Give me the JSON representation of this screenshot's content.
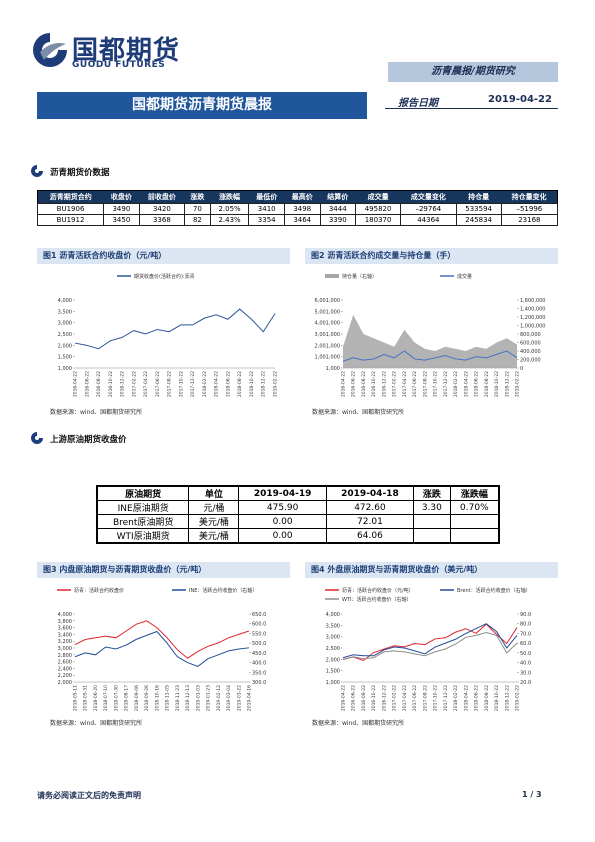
{
  "header": {
    "logo_cn": "国都期货",
    "logo_en": "GUODU FUTURES",
    "category": "沥青晨报/期货研究",
    "banner": "国都期货沥青期货晨报",
    "date_label": "报告日期",
    "date": "2019-04-22"
  },
  "sections": [
    {
      "title": "沥青期货价数据",
      "table": {
        "columns": [
          "沥青期货合约",
          "收盘价",
          "前收盘价",
          "涨跌",
          "涨跌幅",
          "最低价",
          "最高价",
          "结算价",
          "成交量",
          "成交量变化",
          "持仓量",
          "持仓量变化"
        ],
        "rows": [
          [
            "BU1906",
            "3490",
            "3420",
            "70",
            "2.05%",
            "3410",
            "3498",
            "3444",
            "495820",
            "–29764",
            "533594",
            "–51996"
          ],
          [
            "BU1912",
            "3450",
            "3368",
            "82",
            "2.43%",
            "3354",
            "3464",
            "3390",
            "180370",
            "44364",
            "245834",
            "23168"
          ]
        ]
      }
    },
    {
      "title": "上游原油期货收盘价",
      "table": {
        "columns": [
          "原油期货",
          "单位",
          "2019-04-19",
          "2019-04-18",
          "涨跌",
          "涨跌幅"
        ],
        "rows": [
          [
            "INE原油期货",
            "元/桶",
            "475.90",
            "472.60",
            "3.30",
            "0.70%"
          ],
          [
            "Brent原油期货",
            "美元/桶",
            "0.00",
            "72.01",
            "",
            ""
          ],
          [
            "WTI原油期货",
            "美元/桶",
            "0.00",
            "64.06",
            "",
            ""
          ]
        ]
      }
    }
  ],
  "chart_data": [
    {
      "type": "line",
      "title": "图1 沥青活跃合约收盘价（元/吨）",
      "categories": [
        "2016-04-22",
        "2016-06-22",
        "2016-08-22",
        "2016-10-22",
        "2016-12-22",
        "2017-02-22",
        "2017-04-22",
        "2017-06-22",
        "2017-08-22",
        "2017-10-22",
        "2017-12-22",
        "2018-02-22",
        "2018-04-22",
        "2018-06-22",
        "2018-08-22",
        "2018-10-22",
        "2018-12-22",
        "2019-02-22"
      ],
      "series": [
        {
          "name": "期货收盘价(活跃合约):沥青",
          "color": "#2f5597",
          "values": [
            2100,
            2000,
            1850,
            2200,
            2350,
            2650,
            2500,
            2700,
            2600,
            2900,
            2900,
            3200,
            3350,
            3150,
            3600,
            3150,
            2600,
            3400
          ]
        }
      ],
      "ylim": [
        1000,
        4000
      ],
      "yticks": [
        {
          "value": 1000,
          "label": "1,000"
        },
        {
          "value": 1500,
          "label": "1,500"
        },
        {
          "value": 2000,
          "label": "2,000"
        },
        {
          "value": 2500,
          "label": "2,500"
        },
        {
          "value": 3000,
          "label": "3,000"
        },
        {
          "value": 3500,
          "label": "3,500"
        },
        {
          "value": 4000,
          "label": "4,000"
        }
      ],
      "source": "数据来源：wind、国都期货研究所"
    },
    {
      "type": "line",
      "title": "图2 沥青活跃合约成交量与持仓量（手）",
      "categories": [
        "2016-04-22",
        "2016-06-22",
        "2016-08-22",
        "2016-10-22",
        "2016-12-22",
        "2017-02-22",
        "2017-04-22",
        "2017-06-22",
        "2017-08-22",
        "2017-10-22",
        "2017-12-22",
        "2018-02-22",
        "2018-04-22",
        "2018-06-22",
        "2018-08-22",
        "2018-10-22",
        "2018-12-22",
        "2019-02-22"
      ],
      "series": [
        {
          "name": "持仓量（右轴）",
          "color": "#a6a6a6",
          "axis": "y2",
          "area": true,
          "values": [
            500000,
            1250000,
            800000,
            700000,
            600000,
            500000,
            900000,
            600000,
            450000,
            400000,
            500000,
            450000,
            400000,
            500000,
            450000,
            600000,
            700000,
            550000
          ]
        },
        {
          "name": "成交量",
          "color": "#4472c4",
          "values": [
            600000,
            900000,
            700000,
            800000,
            1200000,
            900000,
            1500000,
            800000,
            700000,
            900000,
            1100000,
            800000,
            700000,
            1000000,
            900000,
            1200000,
            1500000,
            900000
          ]
        }
      ],
      "ylim": [
        1000,
        6001000
      ],
      "yticks": [
        {
          "value": 1000,
          "label": "1,000"
        },
        {
          "value": 1001000,
          "label": "1,001,000"
        },
        {
          "value": 2001000,
          "label": "2,001,000"
        },
        {
          "value": 3001000,
          "label": "3,001,000"
        },
        {
          "value": 4001000,
          "label": "4,001,000"
        },
        {
          "value": 5001000,
          "label": "5,001,000"
        },
        {
          "value": 6001000,
          "label": "6,001,000"
        }
      ],
      "y2lim": [
        0,
        1600000
      ],
      "y2ticks": [
        0,
        {
          "value": 200000,
          "label": "200,000"
        },
        {
          "value": 400000,
          "label": "400,000"
        },
        {
          "value": 600000,
          "label": "600,000"
        },
        {
          "value": 800000,
          "label": "800,000"
        },
        {
          "value": 1000000,
          "label": "1,000,000"
        },
        {
          "value": 1200000,
          "label": "1,200,000"
        },
        {
          "value": 1400000,
          "label": "1,400,000"
        },
        {
          "value": 1600000,
          "label": "1,600,000"
        }
      ],
      "source": "数据来源：wind、国都期货研究所"
    },
    {
      "type": "line",
      "title": "图3 内盘原油期货与沥青期货收盘价（元/吨）",
      "categories": [
        "2018-05-11",
        "2018-05-31",
        "2018-06-20",
        "2018-07-10",
        "2018-07-30",
        "2018-08-17",
        "2018-09-06",
        "2018-09-26",
        "2018-10-16",
        "2018-11-05",
        "2018-11-23",
        "2018-12-13",
        "2019-01-03",
        "2019-01-23",
        "2019-02-12",
        "2019-03-04",
        "2019-03-22",
        "2019-04-16"
      ],
      "series": [
        {
          "name": "沥青：活跃合约收盘价",
          "color": "#e0242b",
          "values": [
            3100,
            3250,
            3300,
            3350,
            3300,
            3500,
            3700,
            3800,
            3600,
            3300,
            2950,
            2700,
            2900,
            3050,
            3150,
            3300,
            3400,
            3500
          ]
        },
        {
          "name": "INE：活跃合约收盘价（右轴）",
          "color": "#1f4e9a",
          "axis": "y2",
          "values": [
            430,
            450,
            440,
            480,
            470,
            490,
            520,
            540,
            560,
            500,
            430,
            400,
            380,
            420,
            440,
            460,
            470,
            476
          ]
        }
      ],
      "ylim": [
        2000,
        4000
      ],
      "yticks": [
        {
          "value": 2000,
          "label": "2,000"
        },
        {
          "value": 2200,
          "label": "2,200"
        },
        {
          "value": 2400,
          "label": "2,400"
        },
        {
          "value": 2600,
          "label": "2,600"
        },
        {
          "value": 2800,
          "label": "2,800"
        },
        {
          "value": 3000,
          "label": "3,000"
        },
        {
          "value": 3200,
          "label": "3,200"
        },
        {
          "value": 3400,
          "label": "3,400"
        },
        {
          "value": 3600,
          "label": "3,600"
        },
        {
          "value": 3800,
          "label": "3,800"
        },
        {
          "value": 4000,
          "label": "4,000"
        }
      ],
      "y2lim": [
        300,
        650
      ],
      "y2ticks": [
        {
          "value": 300,
          "label": "300.0"
        },
        {
          "value": 350,
          "label": "350.0"
        },
        {
          "value": 400,
          "label": "400.0"
        },
        {
          "value": 450,
          "label": "450.0"
        },
        {
          "value": 500,
          "label": "500.0"
        },
        {
          "value": 550,
          "label": "550.0"
        },
        {
          "value": 600,
          "label": "600.0"
        },
        {
          "value": 650,
          "label": "650.0"
        }
      ],
      "source": "数据来源：wind、国都期货研究所"
    },
    {
      "type": "line",
      "title": "图4 外盘原油期货与沥青期货收盘价（美元/吨）",
      "categories": [
        "2016-04-22",
        "2016-06-22",
        "2016-08-22",
        "2016-10-22",
        "2016-12-22",
        "2017-02-22",
        "2017-04-22",
        "2017-06-22",
        "2017-08-22",
        "2017-10-22",
        "2017-12-22",
        "2018-02-22",
        "2018-04-22",
        "2018-06-22",
        "2018-08-22",
        "2018-10-22",
        "2018-12-22",
        "2019-02-22"
      ],
      "series": [
        {
          "name": "沥青：活跃合约收盘价（元/吨）",
          "color": "#e0242b",
          "values": [
            2000,
            2100,
            1950,
            2300,
            2450,
            2600,
            2550,
            2700,
            2650,
            2900,
            2950,
            3200,
            3350,
            3150,
            3550,
            3100,
            2700,
            3400
          ]
        },
        {
          "name": "Brent：活跃合约收盘价（右轴）",
          "color": "#1f4e9a",
          "axis": "y2",
          "values": [
            45,
            48,
            47,
            47,
            53,
            56,
            55,
            52,
            49,
            56,
            60,
            64,
            70,
            75,
            80,
            72,
            55,
            68
          ]
        },
        {
          "name": "WTI：活跃合约收盘价（右轴）",
          "color": "#8c8c8c",
          "axis": "y2",
          "values": [
            43,
            46,
            44,
            45,
            51,
            52,
            51,
            49,
            47,
            51,
            54,
            59,
            66,
            68,
            71,
            68,
            50,
            60
          ]
        }
      ],
      "ylim": [
        1000,
        4000
      ],
      "yticks": [
        {
          "value": 1000,
          "label": "1,000"
        },
        {
          "value": 1500,
          "label": "1,500"
        },
        {
          "value": 2000,
          "label": "2,000"
        },
        {
          "value": 2500,
          "label": "2,500"
        },
        {
          "value": 3000,
          "label": "3,000"
        },
        {
          "value": 3500,
          "label": "3,500"
        },
        {
          "value": 4000,
          "label": "4,000"
        }
      ],
      "y2lim": [
        20,
        90
      ],
      "y2ticks": [
        {
          "value": 20,
          "label": "20.0"
        },
        {
          "value": 30,
          "label": "30.0"
        },
        {
          "value": 40,
          "label": "40.0"
        },
        {
          "value": 50,
          "label": "50.0"
        },
        {
          "value": 60,
          "label": "60.0"
        },
        {
          "value": 70,
          "label": "70.0"
        },
        {
          "value": 80,
          "label": "80.0"
        },
        {
          "value": 90,
          "label": "90.0"
        }
      ],
      "source": "数据来源：wind、国都期货研究所"
    }
  ],
  "footer": {
    "disclaimer": "请务必阅读正文后的免责声明",
    "page": "1 / 3"
  }
}
